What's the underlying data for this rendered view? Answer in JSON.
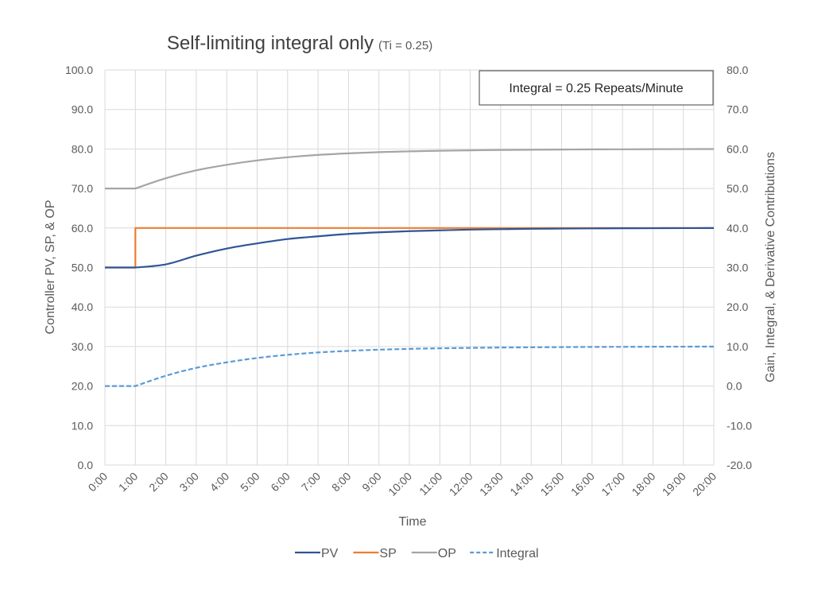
{
  "chart_data": {
    "type": "line",
    "title": "Self-limiting integral only",
    "subtitle": "(Ti = 0.25)",
    "annotation": "Integral = 0.25 Repeats/Minute",
    "xlabel": "Time",
    "ylabel": "Controller PV, SP, & OP",
    "y2label": "Gain, Integral, & Derivative Contributions",
    "ylim": [
      0,
      100
    ],
    "y2lim": [
      -20,
      80
    ],
    "yticks": [
      "0.0",
      "10.0",
      "20.0",
      "30.0",
      "40.0",
      "50.0",
      "60.0",
      "70.0",
      "80.0",
      "90.0",
      "100.0"
    ],
    "y2ticks": [
      "-20.0",
      "-10.0",
      "0.0",
      "10.0",
      "20.0",
      "30.0",
      "40.0",
      "50.0",
      "60.0",
      "70.0",
      "80.0"
    ],
    "categories": [
      "0:00",
      "1:00",
      "2:00",
      "3:00",
      "4:00",
      "5:00",
      "6:00",
      "7:00",
      "8:00",
      "9:00",
      "10:00",
      "11:00",
      "12:00",
      "13:00",
      "14:00",
      "15:00",
      "16:00",
      "17:00",
      "18:00",
      "19:00",
      "20:00"
    ],
    "x_minutes": [
      0,
      1,
      2,
      3,
      4,
      5,
      6,
      7,
      8,
      9,
      10,
      11,
      12,
      13,
      14,
      15,
      16,
      17,
      18,
      19,
      20
    ],
    "grid": true,
    "legend_position": "bottom",
    "series": [
      {
        "name": "PV",
        "axis": "left",
        "color": "#2F5597",
        "dash": false,
        "values": [
          50.0,
          50.0,
          50.8,
          53.0,
          54.8,
          56.1,
          57.2,
          57.9,
          58.5,
          58.9,
          59.2,
          59.4,
          59.6,
          59.7,
          59.8,
          59.85,
          59.9,
          59.93,
          59.95,
          59.97,
          59.98
        ]
      },
      {
        "name": "SP",
        "axis": "left",
        "color": "#ED7D31",
        "dash": false,
        "values": [
          50.0,
          60.0,
          60.0,
          60.0,
          60.0,
          60.0,
          60.0,
          60.0,
          60.0,
          60.0,
          60.0,
          60.0,
          60.0,
          60.0,
          60.0,
          60.0,
          60.0,
          60.0,
          60.0,
          60.0,
          60.0
        ],
        "step_at": 1
      },
      {
        "name": "OP",
        "axis": "left",
        "color": "#A5A5A5",
        "dash": false,
        "values": [
          70.0,
          70.0,
          72.6,
          74.6,
          76.0,
          77.1,
          77.9,
          78.5,
          78.9,
          79.2,
          79.4,
          79.55,
          79.65,
          79.75,
          79.8,
          79.85,
          79.9,
          79.92,
          79.95,
          79.97,
          79.98
        ]
      },
      {
        "name": "Integral",
        "axis": "right",
        "color": "#5B9BD5",
        "dash": true,
        "values": [
          0.0,
          0.0,
          2.6,
          4.6,
          6.0,
          7.1,
          7.9,
          8.5,
          8.9,
          9.2,
          9.4,
          9.55,
          9.65,
          9.75,
          9.8,
          9.85,
          9.9,
          9.92,
          9.95,
          9.97,
          9.98
        ]
      }
    ]
  }
}
